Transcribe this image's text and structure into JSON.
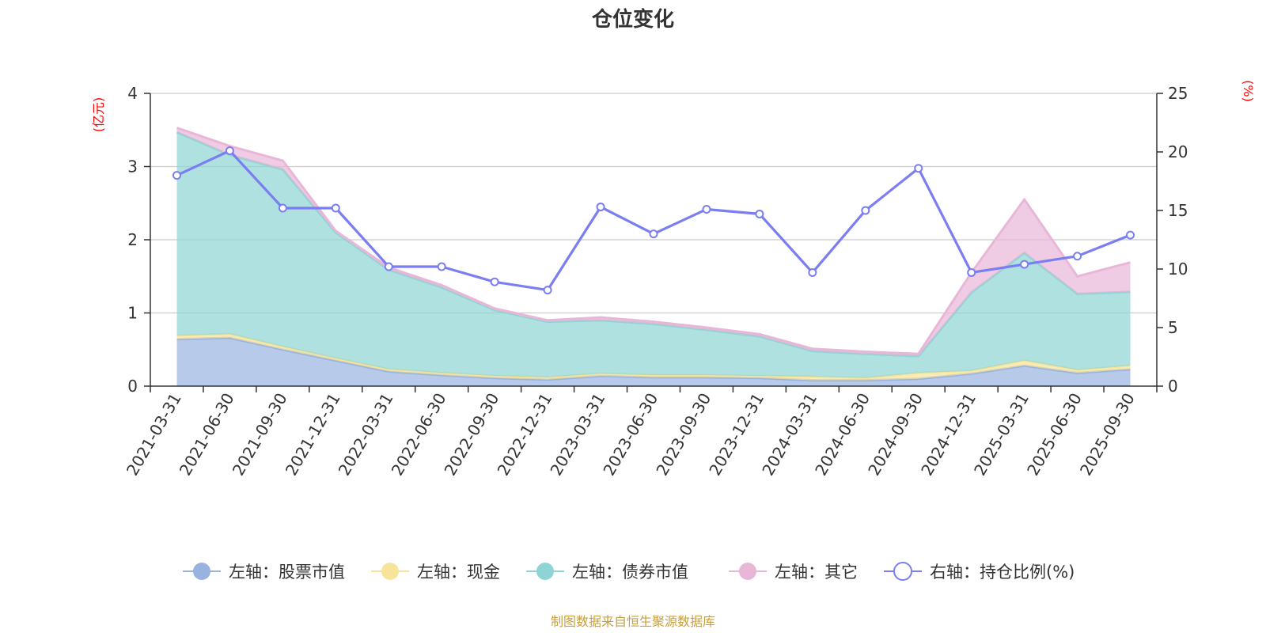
{
  "chart_data": {
    "type": "area",
    "title": "仓位变化",
    "left_unit": "(亿元)",
    "right_unit": "(%)",
    "categories": [
      "2021-03-31",
      "2021-06-30",
      "2021-09-30",
      "2021-12-31",
      "2022-03-31",
      "2022-06-30",
      "2022-09-30",
      "2022-12-31",
      "2023-03-31",
      "2023-06-30",
      "2023-09-30",
      "2023-12-31",
      "2024-03-31",
      "2024-06-30",
      "2024-09-30",
      "2024-12-31",
      "2025-03-31",
      "2025-06-30",
      "2025-09-30"
    ],
    "left_axis": {
      "min": 0,
      "max": 4,
      "ticks": [
        "0",
        "1",
        "2",
        "3",
        "4"
      ]
    },
    "right_axis": {
      "min": 0,
      "max": 25,
      "ticks": [
        "0",
        "5",
        "10",
        "15",
        "20",
        "25"
      ]
    },
    "stacked_series": [
      {
        "name": "左轴：股票市值",
        "color": "#98b3e0",
        "values": [
          0.64,
          0.66,
          0.5,
          0.35,
          0.2,
          0.15,
          0.11,
          0.09,
          0.14,
          0.12,
          0.12,
          0.11,
          0.08,
          0.08,
          0.1,
          0.17,
          0.28,
          0.18,
          0.23
        ]
      },
      {
        "name": "左轴：现金",
        "color": "#f7e49b",
        "values": [
          0.05,
          0.05,
          0.04,
          0.03,
          0.03,
          0.03,
          0.03,
          0.03,
          0.03,
          0.03,
          0.03,
          0.03,
          0.05,
          0.03,
          0.08,
          0.04,
          0.07,
          0.04,
          0.05
        ]
      },
      {
        "name": "左轴：债券市值",
        "color": "#8fd4d4",
        "values": [
          2.78,
          2.45,
          2.42,
          1.72,
          1.36,
          1.17,
          0.9,
          0.76,
          0.73,
          0.7,
          0.62,
          0.54,
          0.35,
          0.33,
          0.23,
          1.07,
          1.47,
          1.04,
          1.01
        ]
      },
      {
        "name": "左轴：其它",
        "color": "#e8b7d8",
        "values": [
          0.06,
          0.12,
          0.12,
          0.02,
          0.03,
          0.03,
          0.02,
          0.02,
          0.04,
          0.03,
          0.03,
          0.03,
          0.03,
          0.03,
          0.03,
          0.27,
          0.73,
          0.24,
          0.4
        ]
      }
    ],
    "line_series": {
      "name": "右轴：持仓比例(%)",
      "color": "#7b7ef0",
      "values": [
        18.0,
        20.1,
        15.2,
        15.2,
        10.2,
        10.2,
        8.9,
        8.2,
        15.3,
        13.0,
        15.1,
        14.7,
        9.7,
        15.0,
        18.6,
        9.7,
        10.4,
        11.1,
        12.9
      ]
    },
    "grid": true,
    "legend": "bottom-center"
  },
  "source_note": "制图数据来自恒生聚源数据库"
}
